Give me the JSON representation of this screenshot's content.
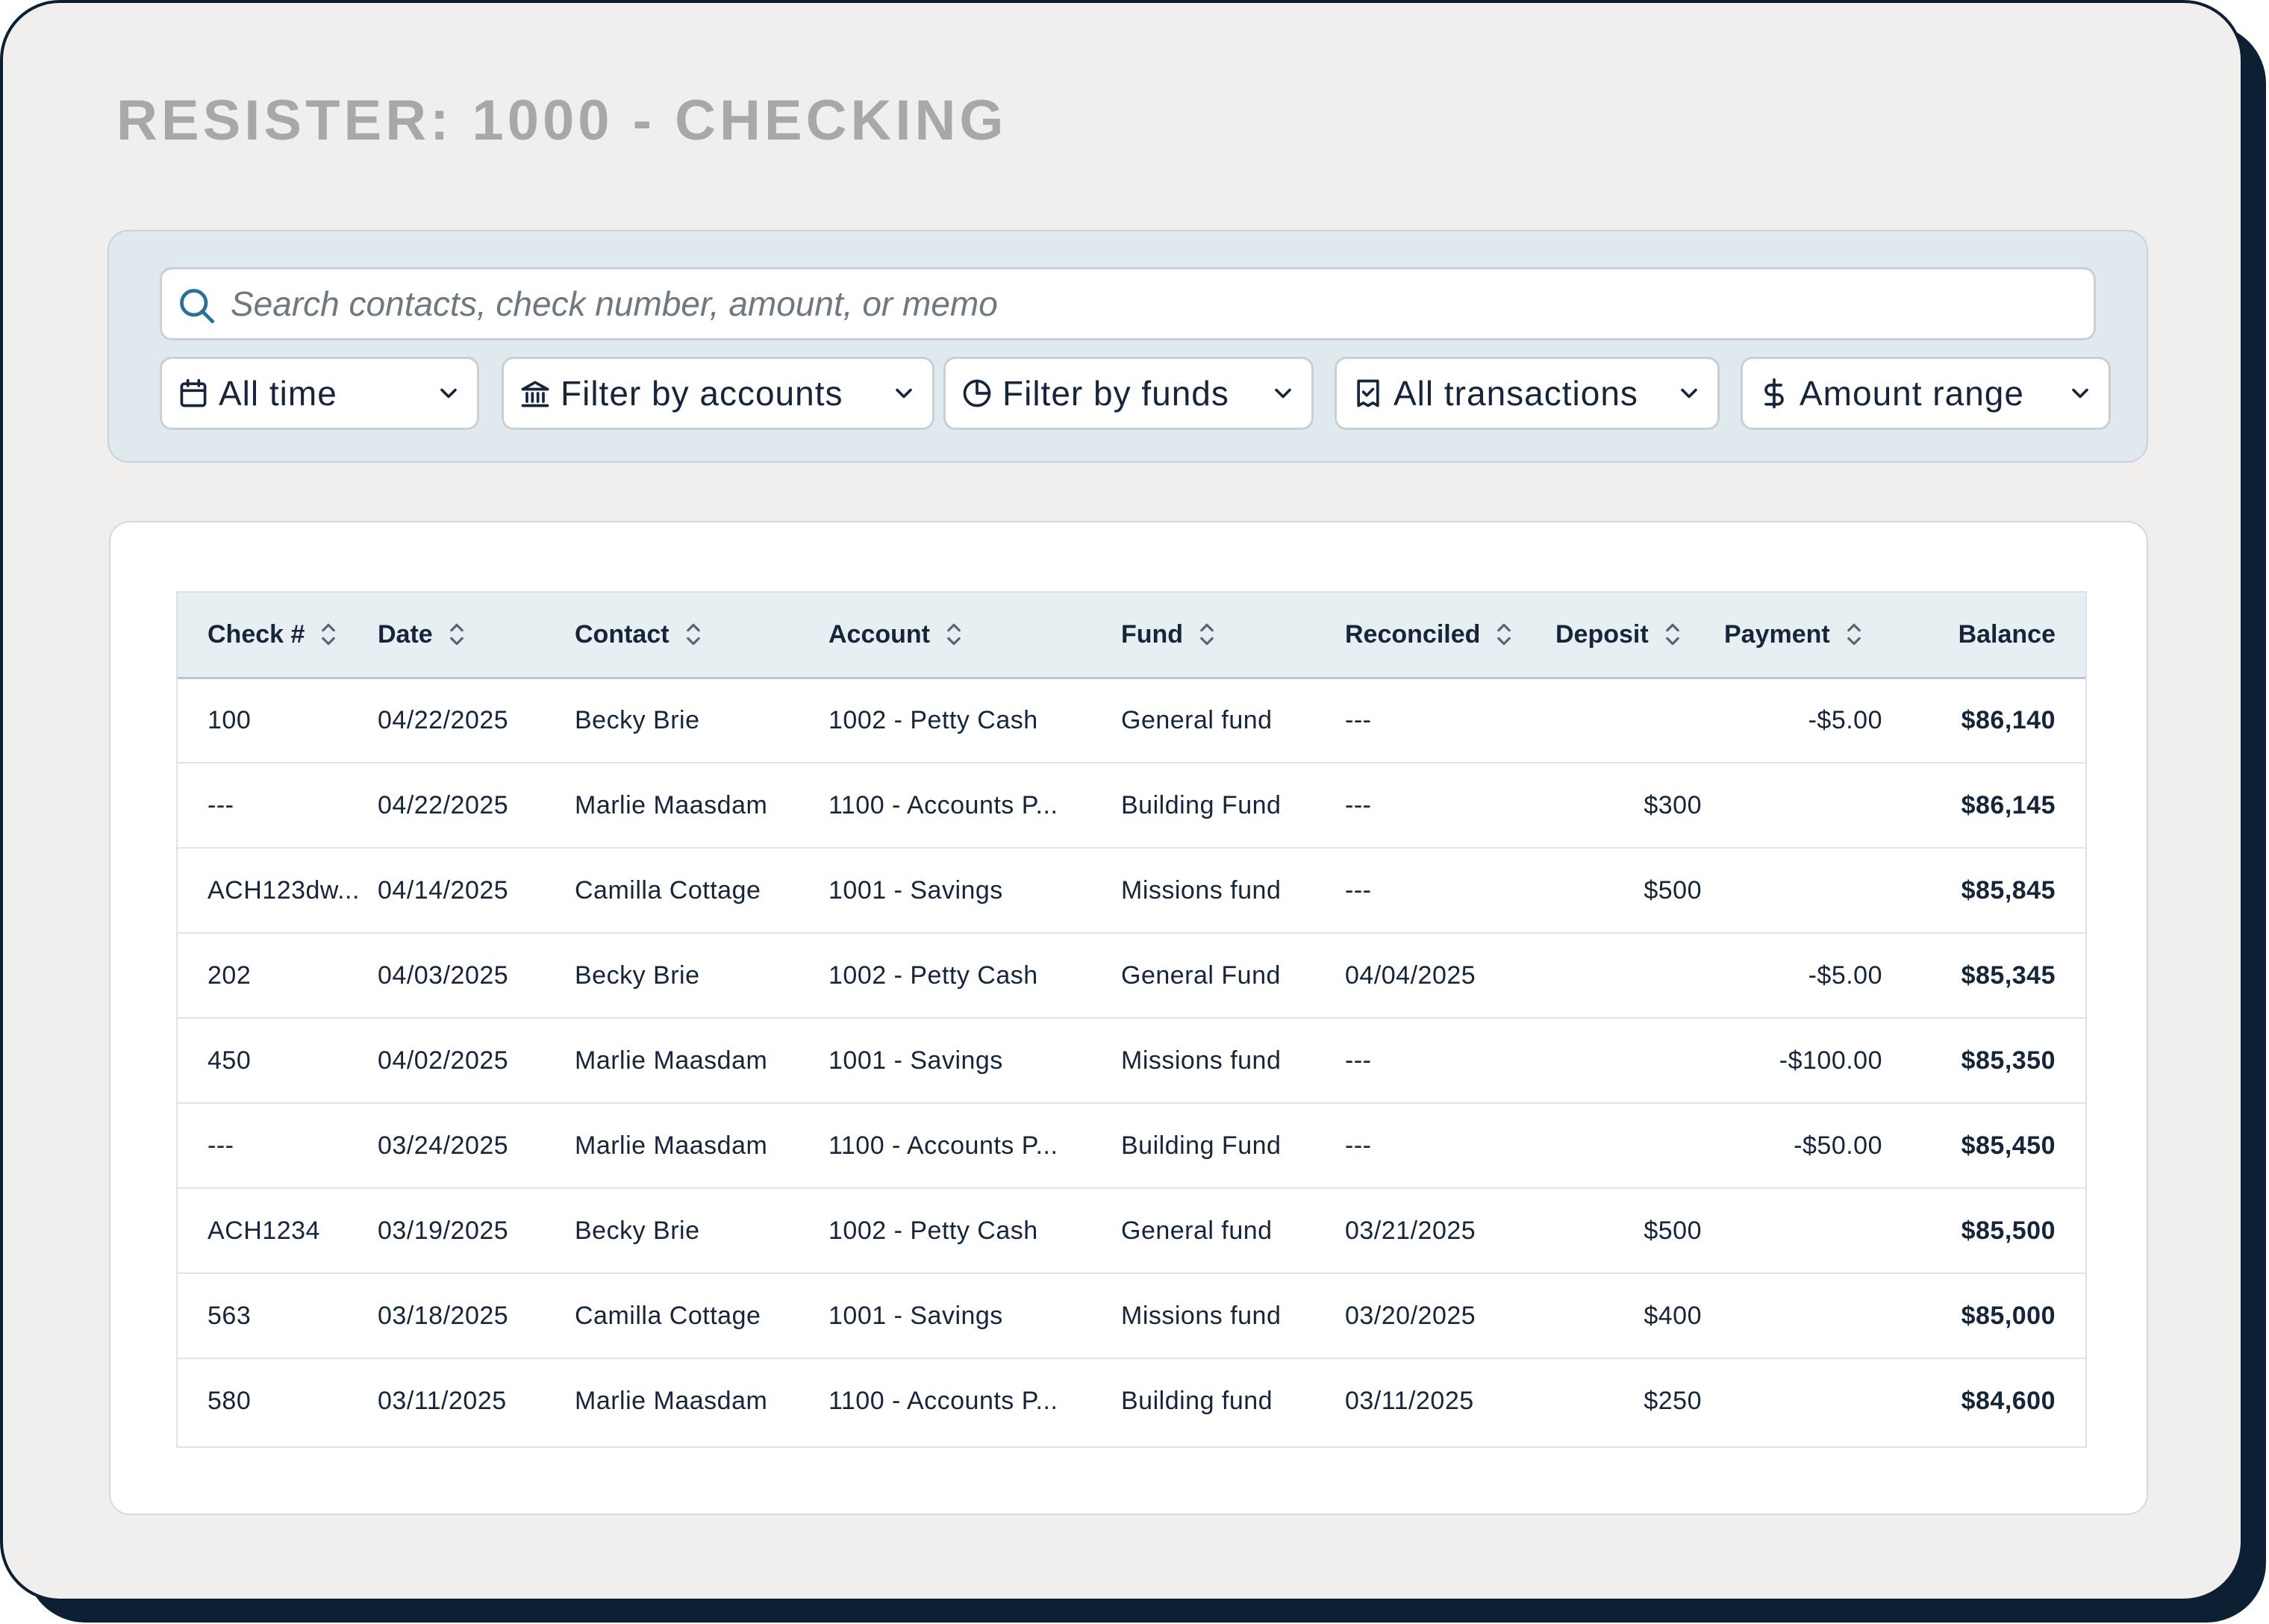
{
  "page": {
    "title": "RESISTER: 1000 - CHECKING"
  },
  "search": {
    "placeholder": "Search contacts, check number, amount, or memo",
    "value": ""
  },
  "filters": [
    {
      "label": "All time",
      "icon": "calendar-icon"
    },
    {
      "label": "Filter by accounts",
      "icon": "bank-icon"
    },
    {
      "label": "Filter by funds",
      "icon": "pie-chart-icon"
    },
    {
      "label": "All transactions",
      "icon": "receipt-check-icon"
    },
    {
      "label": "Amount range",
      "icon": "dollar-icon"
    }
  ],
  "table": {
    "columns": [
      "Check #",
      "Date",
      "Contact",
      "Account",
      "Fund",
      "Reconciled",
      "Deposit",
      "Payment",
      "Balance"
    ],
    "rows": [
      {
        "check": "100",
        "date": "04/22/2025",
        "contact": "Becky Brie",
        "account": "1002 - Petty Cash",
        "fund": "General fund",
        "reconciled": "---",
        "deposit": "",
        "payment": "-$5.00",
        "balance": "$86,140"
      },
      {
        "check": "---",
        "date": "04/22/2025",
        "contact": "Marlie Maasdam",
        "account": "1100 - Accounts P...",
        "fund": "Building Fund",
        "reconciled": "---",
        "deposit": "$300",
        "payment": "",
        "balance": "$86,145"
      },
      {
        "check": "ACH123dw...",
        "date": "04/14/2025",
        "contact": "Camilla Cottage",
        "account": "1001 - Savings",
        "fund": "Missions fund",
        "reconciled": "---",
        "deposit": "$500",
        "payment": "",
        "balance": "$85,845"
      },
      {
        "check": "202",
        "date": "04/03/2025",
        "contact": "Becky Brie",
        "account": "1002 - Petty Cash",
        "fund": "General Fund",
        "reconciled": "04/04/2025",
        "deposit": "",
        "payment": "-$5.00",
        "balance": "$85,345"
      },
      {
        "check": "450",
        "date": "04/02/2025",
        "contact": "Marlie Maasdam",
        "account": "1001 - Savings",
        "fund": "Missions fund",
        "reconciled": "---",
        "deposit": "",
        "payment": "-$100.00",
        "balance": "$85,350"
      },
      {
        "check": "---",
        "date": "03/24/2025",
        "contact": "Marlie Maasdam",
        "account": "1100 - Accounts P...",
        "fund": "Building Fund",
        "reconciled": "---",
        "deposit": "",
        "payment": "-$50.00",
        "balance": "$85,450"
      },
      {
        "check": "ACH1234",
        "date": "03/19/2025",
        "contact": "Becky Brie",
        "account": "1002 - Petty Cash",
        "fund": "General fund",
        "reconciled": "03/21/2025",
        "deposit": "$500",
        "payment": "",
        "balance": "$85,500"
      },
      {
        "check": "563",
        "date": "03/18/2025",
        "contact": "Camilla Cottage",
        "account": "1001 - Savings",
        "fund": "Missions fund",
        "reconciled": "03/20/2025",
        "deposit": "$400",
        "payment": "",
        "balance": "$85,000"
      },
      {
        "check": "580",
        "date": "03/11/2025",
        "contact": "Marlie Maasdam",
        "account": "1100 - Accounts P...",
        "fund": "Building fund",
        "reconciled": "03/11/2025",
        "deposit": "$250",
        "payment": "",
        "balance": "$84,600"
      }
    ]
  },
  "colors": {
    "frame_border": "#0c1f33",
    "frame_bg": "#f0efed",
    "filter_panel_bg": "#e0e9ee",
    "header_bg": "#e8eff2",
    "text": "#16253a",
    "title": "#a8a8a8",
    "search_icon": "#2a6f97"
  }
}
